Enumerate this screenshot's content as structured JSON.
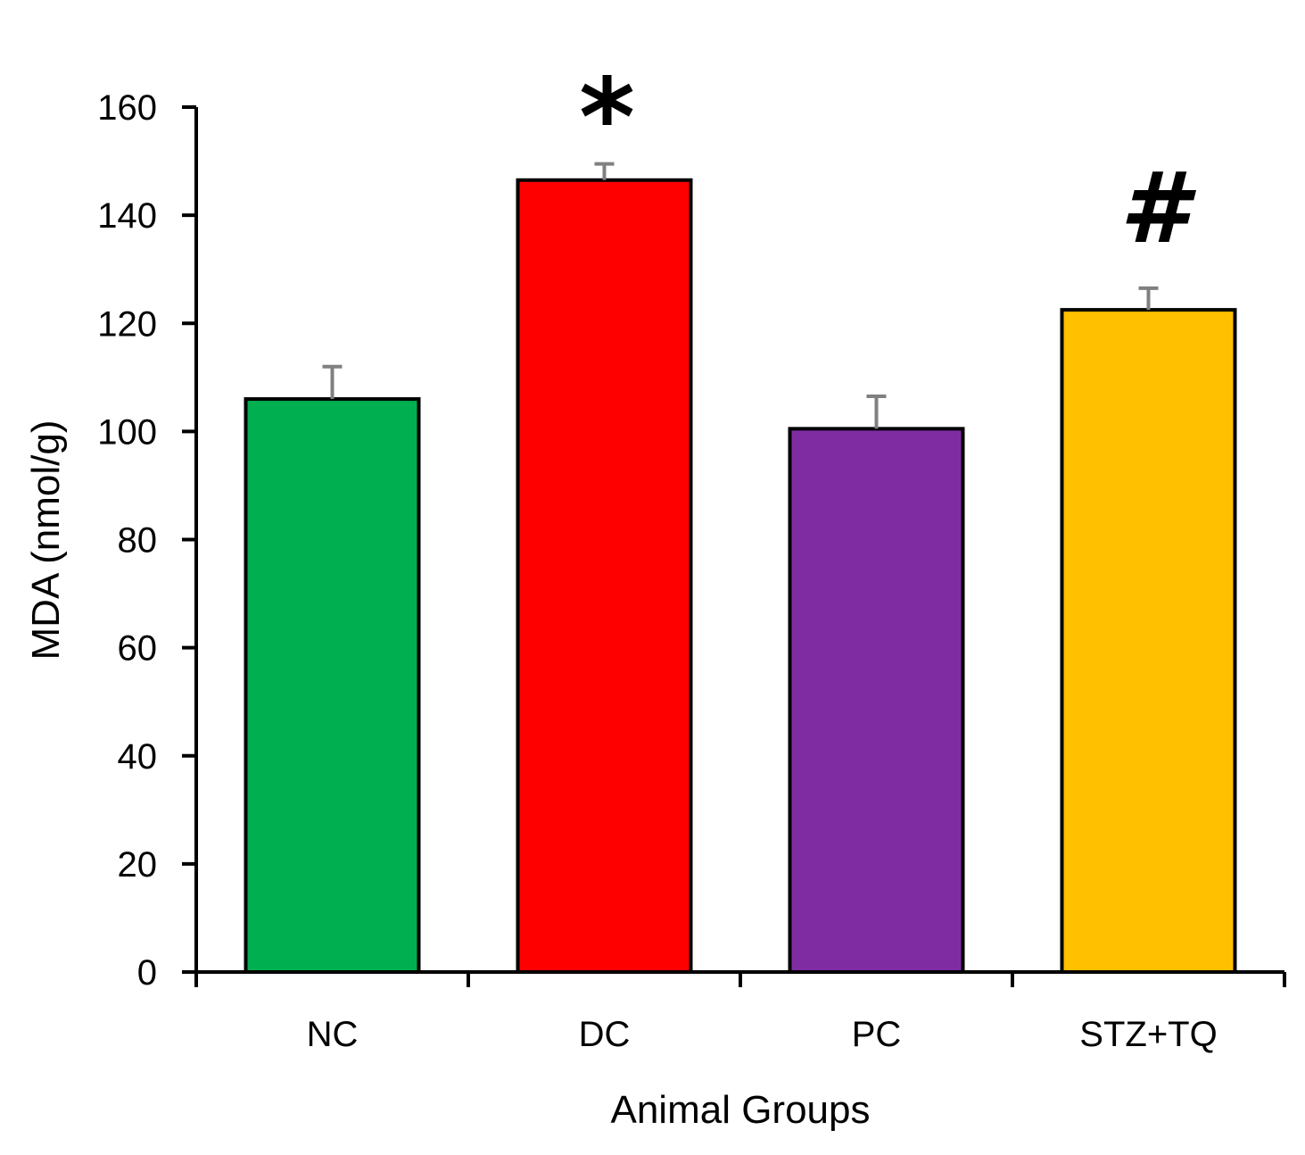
{
  "chart_data": {
    "type": "bar",
    "title": "",
    "xlabel": "Animal Groups",
    "ylabel": "MDA (nmol/g)",
    "ylim": [
      0,
      160
    ],
    "yticks": [
      0,
      20,
      40,
      60,
      80,
      100,
      120,
      140,
      160
    ],
    "grid": false,
    "categories": [
      "NC",
      "DC",
      "PC",
      "STZ+TQ"
    ],
    "values": [
      106,
      146.5,
      100.5,
      122.5
    ],
    "errors": [
      6,
      3,
      6,
      4
    ],
    "colors": [
      "#00b050",
      "#ff0000",
      "#7f2ca3",
      "#ffc000"
    ],
    "markers": [
      "",
      "*",
      "",
      "#"
    ]
  }
}
